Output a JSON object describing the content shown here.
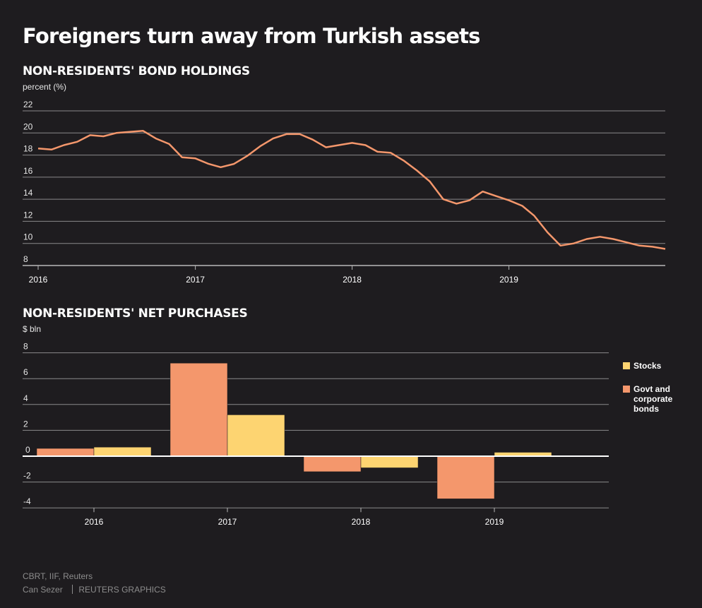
{
  "title": "Foreigners turn away from Turkish assets",
  "colors": {
    "background": "#1e1c1f",
    "bonds": "#f4976c",
    "stocks": "#fdd471",
    "grid": "#8a898b",
    "zero": "#ffffff"
  },
  "chart_data": [
    {
      "type": "line",
      "title": "NON-RESIDENTS' BOND HOLDINGS",
      "ylabel": "percent (%)",
      "ylim": [
        8,
        22
      ],
      "yticks": [
        8,
        10,
        12,
        14,
        16,
        18,
        20,
        22
      ],
      "xticks": [
        "2016",
        "2017",
        "2018",
        "2019"
      ],
      "xlim": [
        "2016-01-01",
        "2019-12-31"
      ],
      "grid": true,
      "series": [
        {
          "color": "#f4976c",
          "points": [
            [
              "2016-01-01",
              18.6
            ],
            [
              "2016-02-01",
              18.5
            ],
            [
              "2016-03-01",
              18.9
            ],
            [
              "2016-04-01",
              19.2
            ],
            [
              "2016-05-01",
              19.8
            ],
            [
              "2016-06-01",
              19.7
            ],
            [
              "2016-07-01",
              20.0
            ],
            [
              "2016-08-01",
              20.1
            ],
            [
              "2016-09-01",
              20.2
            ],
            [
              "2016-10-01",
              19.5
            ],
            [
              "2016-11-01",
              19.0
            ],
            [
              "2016-12-01",
              17.8
            ],
            [
              "2017-01-01",
              17.7
            ],
            [
              "2017-02-01",
              17.2
            ],
            [
              "2017-03-01",
              16.9
            ],
            [
              "2017-04-01",
              17.2
            ],
            [
              "2017-05-01",
              17.9
            ],
            [
              "2017-06-01",
              18.8
            ],
            [
              "2017-07-01",
              19.5
            ],
            [
              "2017-08-01",
              19.9
            ],
            [
              "2017-09-01",
              19.9
            ],
            [
              "2017-10-01",
              19.4
            ],
            [
              "2017-11-01",
              18.7
            ],
            [
              "2017-12-01",
              18.9
            ],
            [
              "2018-01-01",
              19.1
            ],
            [
              "2018-02-01",
              18.9
            ],
            [
              "2018-03-01",
              18.3
            ],
            [
              "2018-04-01",
              18.2
            ],
            [
              "2018-05-01",
              17.5
            ],
            [
              "2018-06-01",
              16.6
            ],
            [
              "2018-07-01",
              15.6
            ],
            [
              "2018-08-01",
              14.0
            ],
            [
              "2018-09-01",
              13.6
            ],
            [
              "2018-10-01",
              13.9
            ],
            [
              "2018-11-01",
              14.7
            ],
            [
              "2018-12-01",
              14.3
            ],
            [
              "2019-01-01",
              13.9
            ],
            [
              "2019-02-01",
              13.4
            ],
            [
              "2019-03-01",
              12.5
            ],
            [
              "2019-04-01",
              11.0
            ],
            [
              "2019-05-01",
              9.8
            ],
            [
              "2019-06-01",
              10.0
            ],
            [
              "2019-07-01",
              10.4
            ],
            [
              "2019-08-01",
              10.6
            ],
            [
              "2019-09-01",
              10.4
            ],
            [
              "2019-10-01",
              10.1
            ],
            [
              "2019-11-01",
              9.8
            ],
            [
              "2019-12-01",
              9.7
            ],
            [
              "2019-12-31",
              9.5
            ]
          ]
        }
      ]
    },
    {
      "type": "bar",
      "title": "NON-RESIDENTS' NET PURCHASES",
      "ylabel": "$ bln",
      "ylim": [
        -4,
        8
      ],
      "yticks": [
        -4,
        -2,
        0,
        2,
        4,
        6,
        8
      ],
      "categories": [
        "2016",
        "2017",
        "2018",
        "2019"
      ],
      "grid": true,
      "legend_position": "right",
      "series": [
        {
          "name": "Govt and corporate bonds",
          "color": "#f4976c",
          "values": [
            0.6,
            7.2,
            -1.2,
            -3.3
          ]
        },
        {
          "name": "Stocks",
          "color": "#fdd471",
          "values": [
            0.7,
            3.2,
            -0.9,
            0.3
          ]
        }
      ]
    }
  ],
  "footer": {
    "source": "CBRT, IIF, Reuters",
    "author": "Can Sezer",
    "agency": "REUTERS GRAPHICS"
  }
}
